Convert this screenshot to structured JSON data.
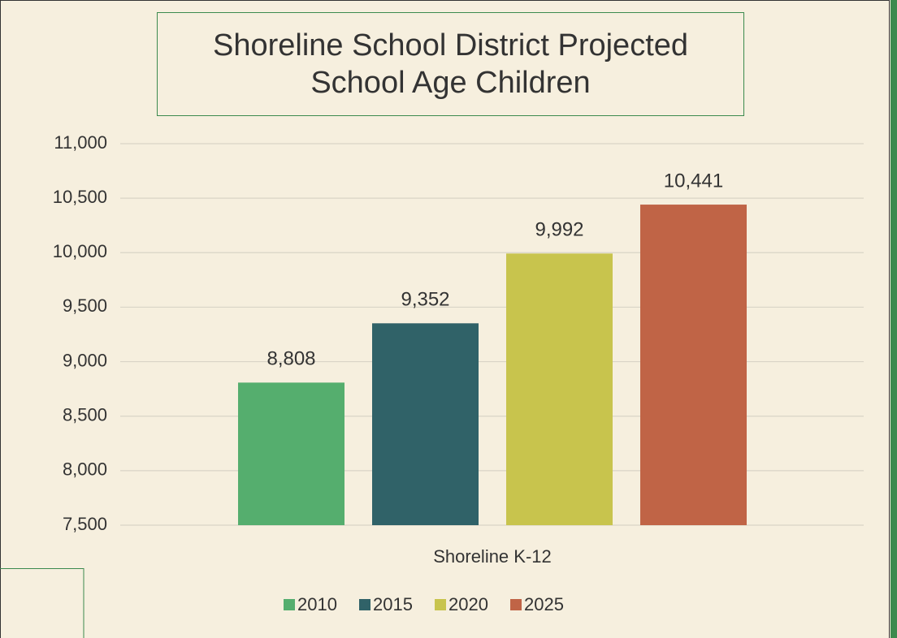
{
  "chart_data": {
    "type": "bar",
    "title": "Shoreline School District Projected School Age Children",
    "categories": [
      "Shoreline K-12"
    ],
    "series": [
      {
        "name": "2010",
        "color": "#55ae6e",
        "values": [
          8808
        ],
        "value_labels": [
          "8,808"
        ]
      },
      {
        "name": "2015",
        "color": "#306268",
        "values": [
          9352
        ],
        "value_labels": [
          "9,352"
        ]
      },
      {
        "name": "2020",
        "color": "#c8c44d",
        "values": [
          9992
        ],
        "value_labels": [
          "9,992"
        ]
      },
      {
        "name": "2025",
        "color": "#c06446",
        "values": [
          10441
        ],
        "value_labels": [
          "10,441"
        ]
      }
    ],
    "ylim": [
      7500,
      11000
    ],
    "yticks": [
      {
        "value": 7500,
        "label": "7,500"
      },
      {
        "value": 8000,
        "label": "8,000"
      },
      {
        "value": 8500,
        "label": "8,500"
      },
      {
        "value": 9000,
        "label": "9,000"
      },
      {
        "value": 9500,
        "label": "9,500"
      },
      {
        "value": 10000,
        "label": "10,000"
      },
      {
        "value": 10500,
        "label": "10,500"
      },
      {
        "value": 11000,
        "label": "11,000"
      }
    ],
    "grid": true,
    "legend": "bottom"
  }
}
